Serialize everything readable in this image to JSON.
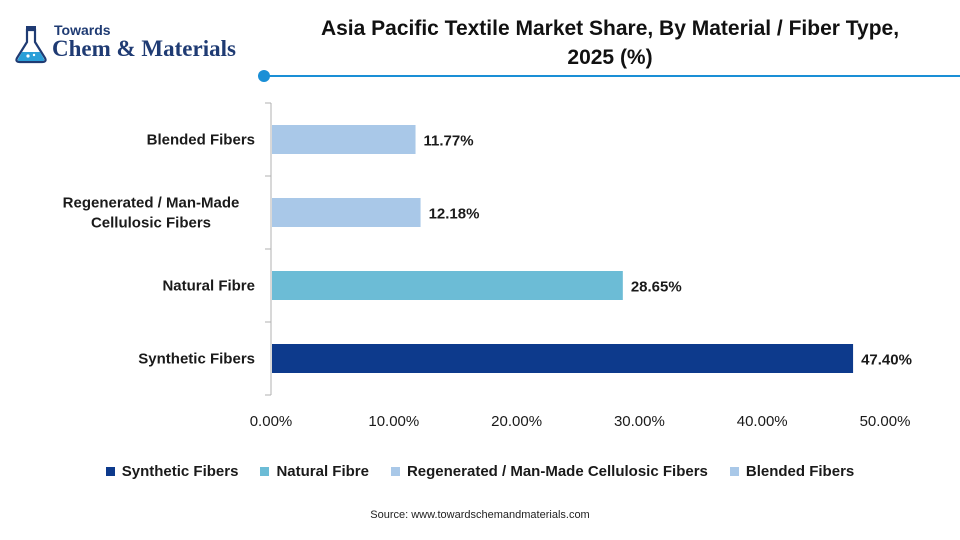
{
  "logo": {
    "small_text": "Towards",
    "big_text": "Chem & Materials",
    "icon": "flask-icon"
  },
  "title_line1": "Asia Pacific Textile Market Share, By Material / Fiber Type,",
  "title_line2": "2025 (%)",
  "source": "Source: www.towardschemandmaterials.com",
  "chart_data": {
    "type": "bar",
    "orientation": "horizontal",
    "categories": [
      "Blended Fibers",
      "Regenerated / Man-Made Cellulosic Fibers",
      "Natural Fibre",
      "Synthetic Fibers"
    ],
    "category_label_lines": [
      [
        "Blended Fibers"
      ],
      [
        "Regenerated / Man-Made",
        "Cellulosic Fibers"
      ],
      [
        "Natural Fibre"
      ],
      [
        "Synthetic Fibers"
      ]
    ],
    "values": [
      11.77,
      12.18,
      28.65,
      47.4
    ],
    "data_labels": [
      "11.77%",
      "12.18%",
      "28.65%",
      "47.40%"
    ],
    "colors": [
      "#a9c8e8",
      "#a9c8e8",
      "#6cbcd6",
      "#0d3a8c"
    ],
    "xlim": [
      0,
      50
    ],
    "xticks": [
      0,
      10,
      20,
      30,
      40,
      50
    ],
    "xtick_labels": [
      "0.00%",
      "10.00%",
      "20.00%",
      "30.00%",
      "40.00%",
      "50.00%"
    ],
    "grid": false,
    "legend_position": "bottom",
    "legend": [
      {
        "label": "Synthetic Fibers",
        "color": "#0d3a8c"
      },
      {
        "label": "Natural Fibre",
        "color": "#6cbcd6"
      },
      {
        "label": "Regenerated / Man-Made Cellulosic Fibers",
        "color": "#a9c8e8"
      },
      {
        "label": "Blended Fibers",
        "color": "#a9c8e8"
      }
    ]
  }
}
